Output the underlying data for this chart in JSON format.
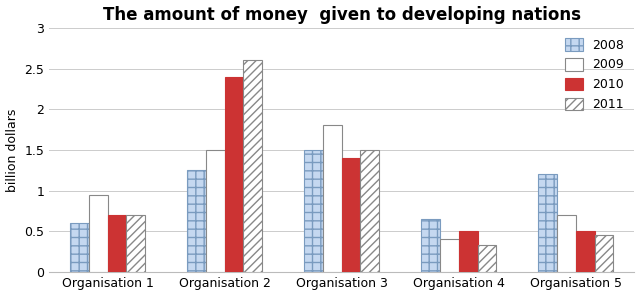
{
  "title": "The amount of money  given to developing nations",
  "ylabel": "billion dollars",
  "categories": [
    "Organisation 1",
    "Organisation 2",
    "Organisation 3",
    "Organisation 4",
    "Organisation 5"
  ],
  "years": [
    "2008",
    "2009",
    "2010",
    "2011"
  ],
  "values": {
    "2008": [
      0.6,
      1.25,
      1.5,
      0.65,
      1.2
    ],
    "2009": [
      0.95,
      1.5,
      1.8,
      0.4,
      0.7
    ],
    "2010": [
      0.7,
      2.4,
      1.4,
      0.5,
      0.5
    ],
    "2011": [
      0.7,
      2.6,
      1.5,
      0.33,
      0.45
    ]
  },
  "ylim": [
    0,
    3
  ],
  "yticks": [
    0,
    0.5,
    1.0,
    1.5,
    2.0,
    2.5,
    3.0
  ],
  "title_fontsize": 12,
  "axis_label_fontsize": 9,
  "tick_fontsize": 9,
  "legend_fontsize": 9,
  "bar_width": 0.16,
  "group_width": 0.85
}
